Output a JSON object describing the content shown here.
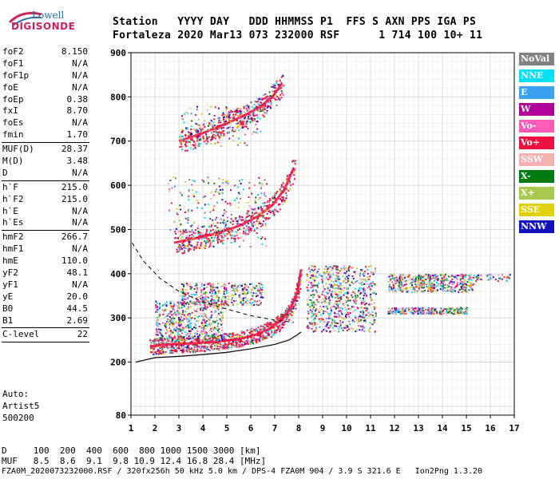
{
  "logo": {
    "line1": "Lowell",
    "line2": "DIGISONDE"
  },
  "header": {
    "labels": [
      "Station",
      "YYYY",
      "DAY",
      "DDD",
      "HHMMSS",
      "P1",
      "FFS",
      "S",
      "AXN",
      "PPS",
      "IGA",
      "PS"
    ],
    "values": [
      "Fortaleza",
      "2020",
      "Mar13",
      "073",
      "232000",
      "RSF",
      "1",
      "714",
      "100",
      "10+",
      "11"
    ]
  },
  "params": {
    "group1": [
      {
        "name": "foF2",
        "value": "8.150"
      },
      {
        "name": "foF1",
        "value": "N/A"
      },
      {
        "name": "foF1p",
        "value": "N/A"
      },
      {
        "name": "foE",
        "value": "N/A"
      },
      {
        "name": "foEp",
        "value": "0.38"
      },
      {
        "name": "fxI",
        "value": "8.70"
      },
      {
        "name": "foEs",
        "value": "N/A"
      },
      {
        "name": "fmin",
        "value": "1.70"
      }
    ],
    "group2": [
      {
        "name": "MUF(D)",
        "value": "28.37"
      },
      {
        "name": "M(D)",
        "value": "3.48"
      },
      {
        "name": "D",
        "value": "N/A"
      }
    ],
    "group3": [
      {
        "name": "h`F",
        "value": "215.0"
      },
      {
        "name": "h`F2",
        "value": "215.0"
      },
      {
        "name": "h`E",
        "value": "N/A"
      },
      {
        "name": "h`Es",
        "value": "N/A"
      }
    ],
    "group4": [
      {
        "name": "hmF2",
        "value": "266.7"
      },
      {
        "name": "hmF1",
        "value": "N/A"
      },
      {
        "name": "hmE",
        "value": "110.0"
      },
      {
        "name": "yF2",
        "value": "48.1"
      },
      {
        "name": "yF1",
        "value": "N/A"
      },
      {
        "name": "yE",
        "value": "20.0"
      },
      {
        "name": "B0",
        "value": "44.5"
      },
      {
        "name": "B1",
        "value": "2.69"
      }
    ],
    "group5": [
      {
        "name": "C-level",
        "value": "22"
      }
    ]
  },
  "auto": {
    "line1": "Auto:",
    "line2": "Artist5",
    "line3": "500200"
  },
  "legend": [
    {
      "label": "NoVal",
      "color": "#808080"
    },
    {
      "label": "NNE",
      "color": "#00e0ff"
    },
    {
      "label": "E",
      "color": "#3aa0f0"
    },
    {
      "label": "W",
      "color": "#b0009a"
    },
    {
      "label": "Vo-",
      "color": "#ff5ab8"
    },
    {
      "label": "Vo+",
      "color": "#f01040"
    },
    {
      "label": "SSW",
      "color": "#f4b0b0"
    },
    {
      "label": "X-",
      "color": "#007a10"
    },
    {
      "label": "X+",
      "color": "#a8c850"
    },
    {
      "label": "SSE",
      "color": "#e0d000"
    },
    {
      "label": "NNW",
      "color": "#1010c0"
    }
  ],
  "bottom": {
    "d_line": "D     100  200  400  600  800 1000 1500 3000 [km]",
    "muf_line": "MUF   8.5  8.6  9.1  9.8 10.9 12.4 16.8 28.4 [MHz]",
    "footer": "FZA0M_2020073232000.RSF / 320fx256h 50 kHz 5.0 km / DPS-4 FZA0M 904 / 3.9 S 321.6 E   Ion2Png 1.3.20"
  },
  "chart_data": {
    "type": "scatter",
    "xlim": [
      1,
      17
    ],
    "ylim": [
      80,
      900
    ],
    "x_ticks": [
      1,
      2,
      3,
      4,
      5,
      6,
      7,
      8,
      9,
      10,
      11,
      12,
      13,
      14,
      15,
      16,
      17
    ],
    "y_ticks": [
      80,
      200,
      300,
      400,
      500,
      600,
      700,
      800,
      900
    ],
    "grid": true,
    "traces": [
      {
        "name": "first-hop",
        "color": "#f01040",
        "x": [
          1.8,
          2.5,
          3.5,
          4.5,
          5.5,
          6.2,
          6.8,
          7.3,
          7.7,
          7.95,
          8.1
        ],
        "y": [
          235,
          240,
          242,
          246,
          252,
          262,
          276,
          296,
          325,
          360,
          410
        ]
      },
      {
        "name": "second-hop",
        "color": "#f01040",
        "x": [
          2.8,
          3.5,
          4.5,
          5.5,
          6.3,
          6.9,
          7.4,
          7.8
        ],
        "y": [
          470,
          478,
          490,
          508,
          530,
          555,
          590,
          640
        ]
      },
      {
        "name": "third-hop",
        "color": "#f01040",
        "x": [
          3.0,
          4.0,
          5.0,
          5.8,
          6.4,
          6.9,
          7.3
        ],
        "y": [
          700,
          718,
          740,
          760,
          778,
          800,
          830
        ]
      }
    ],
    "profile_solid": {
      "x": [
        1.2,
        2,
        3,
        4,
        5,
        6,
        7,
        7.6,
        7.95,
        8.1
      ],
      "y": [
        200,
        210,
        213,
        217,
        222,
        230,
        240,
        250,
        262,
        268
      ]
    },
    "profile_dashed": {
      "x": [
        1.05,
        1.5,
        2.2,
        3.0,
        4.0,
        5.0,
        6.0,
        7.0,
        7.8
      ],
      "y": [
        470,
        430,
        390,
        360,
        336,
        320,
        305,
        295,
        290
      ]
    }
  }
}
